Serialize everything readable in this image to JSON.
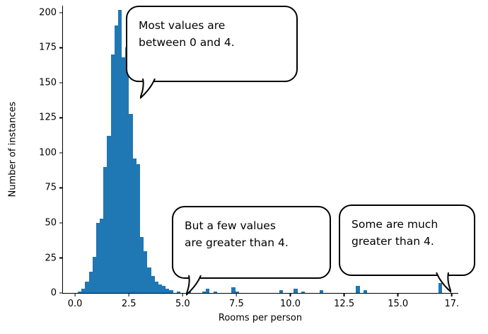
{
  "annotations": [
    {
      "text": "Most values are\nbetween 0 and 4."
    },
    {
      "text": "But a few values\nare greater than 4."
    },
    {
      "text": "Some are much\ngreater than 4."
    }
  ],
  "chart_data": {
    "type": "bar",
    "subtype": "histogram",
    "title": "",
    "xlabel": "Rooms per person",
    "ylabel": "Number of instances",
    "xlim": [
      -0.56,
      17.8
    ],
    "ylim": [
      0,
      205
    ],
    "grid": false,
    "legend": "none",
    "bar_color": "#1f77b4",
    "bin_width": 0.17,
    "xticks": [
      {
        "value": 0,
        "label": "0.0"
      },
      {
        "value": 2.5,
        "label": "2.5"
      },
      {
        "value": 5,
        "label": "5.0"
      },
      {
        "value": 7.5,
        "label": "7.5"
      },
      {
        "value": 10,
        "label": "10.0"
      },
      {
        "value": 12.5,
        "label": "12.5"
      },
      {
        "value": 15,
        "label": "15.0"
      },
      {
        "value": 17.5,
        "label": "17."
      }
    ],
    "yticks": [
      {
        "value": 0,
        "label": "0"
      },
      {
        "value": 25,
        "label": "25"
      },
      {
        "value": 50,
        "label": "50"
      },
      {
        "value": 75,
        "label": "75"
      },
      {
        "value": 100,
        "label": "100"
      },
      {
        "value": 125,
        "label": "125"
      },
      {
        "value": 150,
        "label": "150"
      },
      {
        "value": 175,
        "label": "175"
      },
      {
        "value": 200,
        "label": "200"
      }
    ],
    "bins": [
      {
        "x": 0.13,
        "count": 1
      },
      {
        "x": 0.3,
        "count": 3
      },
      {
        "x": 0.47,
        "count": 8
      },
      {
        "x": 0.64,
        "count": 15
      },
      {
        "x": 0.81,
        "count": 26
      },
      {
        "x": 0.98,
        "count": 50
      },
      {
        "x": 1.15,
        "count": 53
      },
      {
        "x": 1.32,
        "count": 90
      },
      {
        "x": 1.49,
        "count": 112
      },
      {
        "x": 1.66,
        "count": 170
      },
      {
        "x": 1.83,
        "count": 191
      },
      {
        "x": 2.0,
        "count": 202
      },
      {
        "x": 2.17,
        "count": 168
      },
      {
        "x": 2.34,
        "count": 175
      },
      {
        "x": 2.51,
        "count": 128
      },
      {
        "x": 2.68,
        "count": 96
      },
      {
        "x": 2.85,
        "count": 92
      },
      {
        "x": 3.02,
        "count": 40
      },
      {
        "x": 3.19,
        "count": 30
      },
      {
        "x": 3.36,
        "count": 18
      },
      {
        "x": 3.53,
        "count": 12
      },
      {
        "x": 3.7,
        "count": 8
      },
      {
        "x": 3.87,
        "count": 6
      },
      {
        "x": 4.04,
        "count": 5
      },
      {
        "x": 4.21,
        "count": 3
      },
      {
        "x": 4.38,
        "count": 2
      },
      {
        "x": 4.72,
        "count": 1
      },
      {
        "x": 5.23,
        "count": 2
      },
      {
        "x": 5.91,
        "count": 1
      },
      {
        "x": 6.08,
        "count": 3
      },
      {
        "x": 6.42,
        "count": 1
      },
      {
        "x": 7.27,
        "count": 4
      },
      {
        "x": 7.44,
        "count": 1
      },
      {
        "x": 9.48,
        "count": 2
      },
      {
        "x": 10.16,
        "count": 3
      },
      {
        "x": 10.5,
        "count": 1
      },
      {
        "x": 11.35,
        "count": 2
      },
      {
        "x": 13.05,
        "count": 5
      },
      {
        "x": 13.39,
        "count": 2
      },
      {
        "x": 16.87,
        "count": 7
      }
    ]
  }
}
